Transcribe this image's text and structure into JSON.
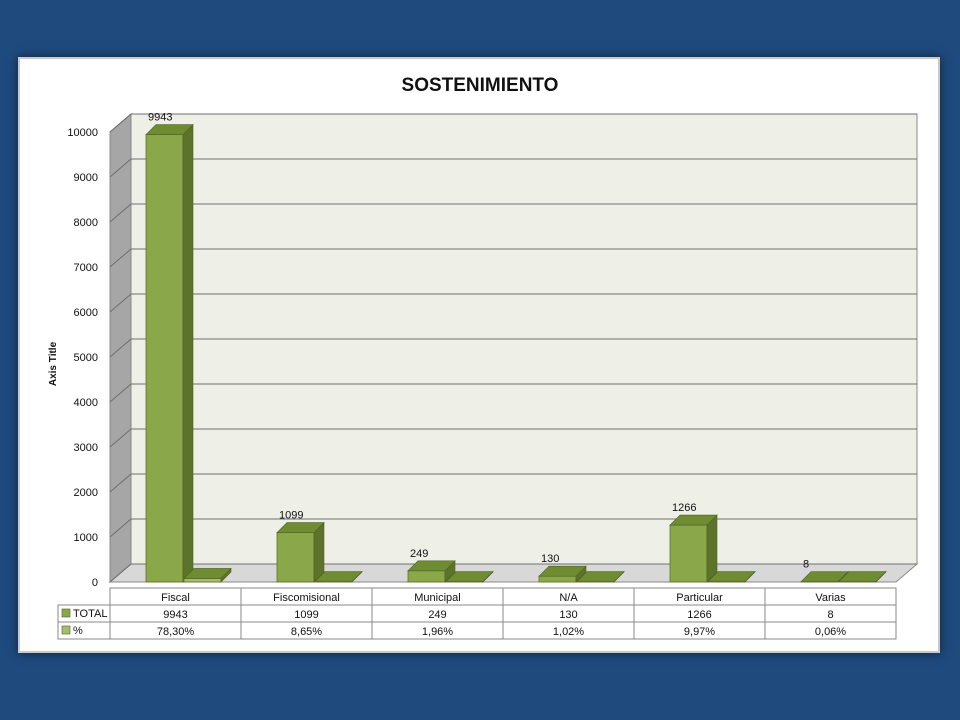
{
  "chart_data": {
    "type": "bar",
    "title": "SOSTENIMIENTO",
    "ylabel": "Axis Title",
    "ylim": [
      0,
      10000
    ],
    "yticks": [
      0,
      1000,
      2000,
      3000,
      4000,
      5000,
      6000,
      7000,
      8000,
      9000,
      10000
    ],
    "categories": [
      "Fiscal",
      "Fiscomisional",
      "Municipal",
      "N/A",
      "Particular",
      "Varias"
    ],
    "series": [
      {
        "name": "TOTAL",
        "values": [
          9943,
          1099,
          249,
          130,
          1266,
          8
        ],
        "labels": [
          "9943",
          "1099",
          "249",
          "130",
          "1266",
          "8"
        ],
        "color": "#8aa84a"
      },
      {
        "name": "%",
        "values": [
          78.3,
          8.65,
          1.96,
          1.02,
          9.97,
          0.06
        ],
        "labels": [
          "78,30%",
          "8,65%",
          "1,96%",
          "1,02%",
          "9,97%",
          "0,06%"
        ],
        "color": "#a4bf6a"
      }
    ],
    "data_table": true,
    "grid": true,
    "style": "3d-column"
  }
}
